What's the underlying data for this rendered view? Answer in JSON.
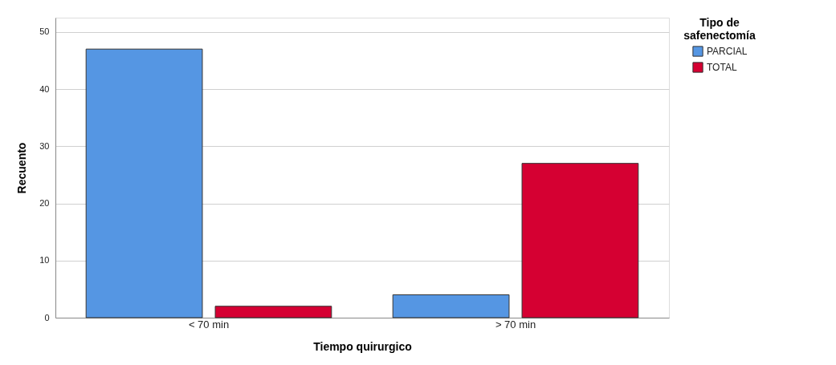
{
  "chart_data": {
    "type": "bar",
    "xlabel": "Tiempo quirurgico",
    "ylabel": "Recuento",
    "legend_title": "Tipo de\nsafenectomía",
    "categories": [
      "< 70 min",
      "> 70 min"
    ],
    "series": [
      {
        "name": "PARCIAL",
        "color": "#5596e3",
        "values": [
          47,
          4
        ]
      },
      {
        "name": "TOTAL",
        "color": "#d50032",
        "values": [
          2,
          27
        ]
      }
    ],
    "ylim": [
      0,
      52.5
    ],
    "yticks": [
      0,
      10,
      20,
      30,
      40,
      50
    ],
    "grid": "y",
    "legend": "top right"
  }
}
